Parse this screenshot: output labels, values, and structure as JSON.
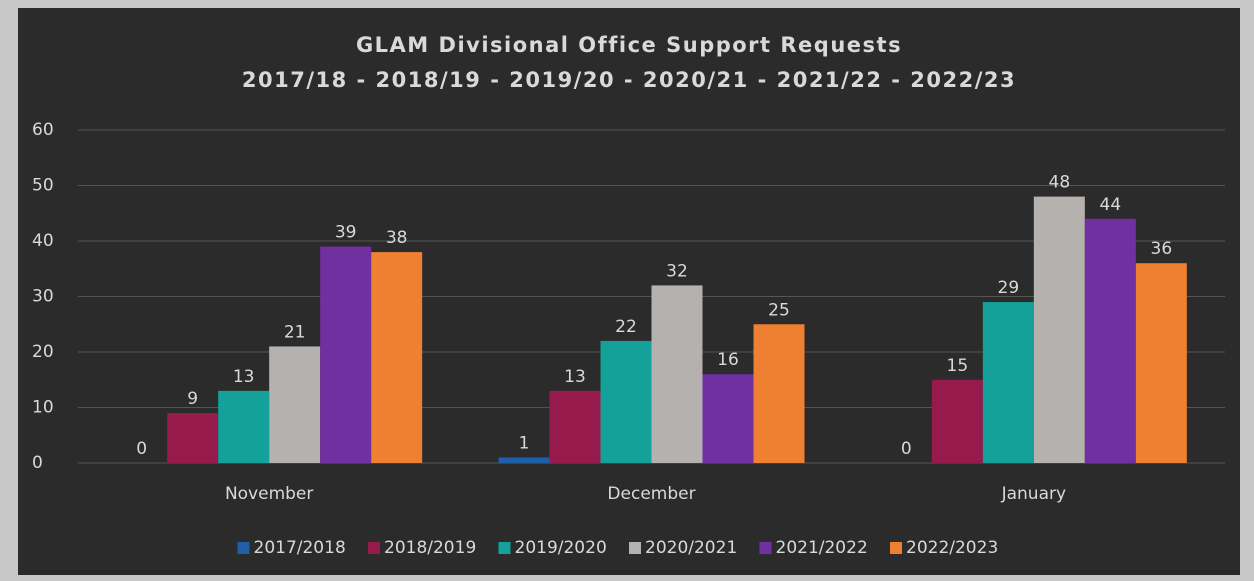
{
  "chart_data": {
    "type": "bar",
    "title": "GLAM Divisional Office Support Requests",
    "subtitle": "2017/18 - 2018/19 - 2019/20 - 2020/21 - 2021/22 - 2022/23",
    "categories": [
      "November",
      "December",
      "January"
    ],
    "series": [
      {
        "name": "2017/2018",
        "color": "#1f5fa8",
        "values": [
          0,
          1,
          0
        ]
      },
      {
        "name": "2018/2019",
        "color": "#961a4c",
        "values": [
          9,
          13,
          15
        ]
      },
      {
        "name": "2019/2020",
        "color": "#13a19a",
        "values": [
          13,
          22,
          29
        ]
      },
      {
        "name": "2020/2021",
        "color": "#b4b1af",
        "values": [
          21,
          32,
          48
        ]
      },
      {
        "name": "2021/2022",
        "color": "#7030a0",
        "values": [
          39,
          16,
          44
        ]
      },
      {
        "name": "2022/2023",
        "color": "#ef7f31",
        "values": [
          38,
          25,
          36
        ]
      }
    ],
    "ylim": [
      0,
      60
    ],
    "yticks": [
      0,
      10,
      20,
      30,
      40,
      50,
      60
    ],
    "grid": true,
    "legend": "bottom"
  }
}
